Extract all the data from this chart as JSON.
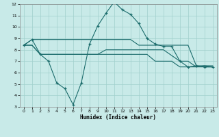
{
  "bg_color": "#c8eae8",
  "line_color": "#1a6b6b",
  "grid_color": "#a0d0cc",
  "xlabel": "Humidex (Indice chaleur)",
  "xlim": [
    -0.5,
    23.5
  ],
  "ylim": [
    3,
    12
  ],
  "xticks": [
    0,
    1,
    2,
    3,
    4,
    5,
    6,
    7,
    8,
    9,
    10,
    11,
    12,
    13,
    14,
    15,
    16,
    17,
    18,
    19,
    20,
    21,
    22,
    23
  ],
  "yticks": [
    3,
    4,
    5,
    6,
    7,
    8,
    9,
    10,
    11,
    12
  ],
  "curve_x": [
    0,
    1,
    2,
    3,
    4,
    5,
    6,
    7,
    8,
    9,
    10,
    11,
    12,
    13,
    14,
    15,
    16,
    17,
    18,
    19,
    20,
    21,
    22,
    23
  ],
  "curve_y": [
    8.4,
    8.9,
    7.6,
    7.0,
    5.1,
    4.6,
    3.2,
    5.1,
    8.5,
    10.1,
    11.2,
    12.2,
    11.5,
    11.1,
    10.3,
    9.0,
    8.5,
    8.3,
    8.3,
    7.0,
    6.5,
    6.6,
    6.5,
    6.5
  ],
  "line1_x": [
    0,
    1,
    2,
    3,
    4,
    5,
    6,
    7,
    8,
    9,
    10,
    11,
    12,
    13,
    14,
    15,
    16,
    17,
    18,
    19,
    20,
    21,
    22,
    23
  ],
  "line1_y": [
    8.4,
    8.9,
    8.9,
    8.9,
    8.9,
    8.9,
    8.9,
    8.9,
    8.9,
    8.9,
    8.9,
    8.9,
    8.9,
    8.9,
    8.4,
    8.4,
    8.4,
    8.4,
    8.4,
    8.4,
    8.4,
    6.6,
    6.6,
    6.6
  ],
  "line2_x": [
    0,
    1,
    2,
    3,
    4,
    5,
    6,
    7,
    8,
    9,
    10,
    11,
    12,
    13,
    14,
    15,
    16,
    17,
    18,
    19,
    20,
    21,
    22,
    23
  ],
  "line2_y": [
    8.4,
    8.4,
    7.6,
    7.6,
    7.6,
    7.6,
    7.6,
    7.6,
    7.6,
    7.6,
    8.0,
    8.0,
    8.0,
    8.0,
    8.0,
    8.0,
    8.0,
    8.0,
    7.5,
    7.0,
    7.0,
    6.5,
    6.6,
    6.5
  ],
  "line3_x": [
    0,
    1,
    2,
    3,
    4,
    5,
    6,
    7,
    8,
    9,
    10,
    11,
    12,
    13,
    14,
    15,
    16,
    17,
    18,
    19,
    20,
    21,
    22,
    23
  ],
  "line3_y": [
    8.4,
    8.4,
    7.6,
    7.6,
    7.6,
    7.6,
    7.6,
    7.6,
    7.6,
    7.6,
    7.6,
    7.6,
    7.6,
    7.6,
    7.6,
    7.6,
    7.0,
    7.0,
    7.0,
    6.5,
    6.5,
    6.5,
    6.5,
    6.5
  ]
}
